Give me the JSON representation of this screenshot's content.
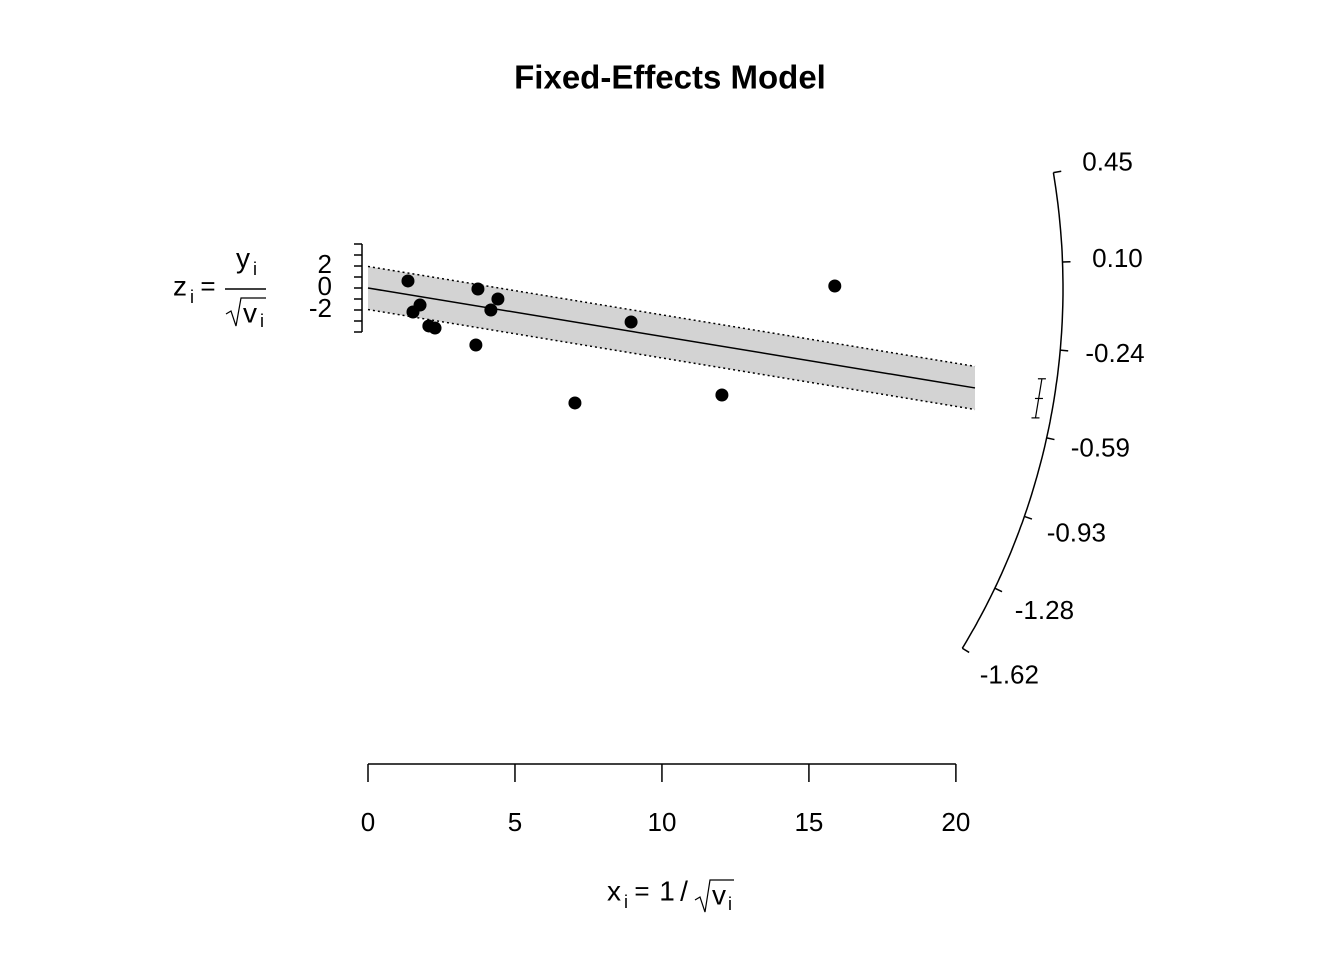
{
  "chart_data": {
    "type": "radial",
    "title": "Fixed-Effects Model",
    "xlabel_parts": [
      "x",
      "i",
      "=",
      "1",
      "/",
      "v",
      "i"
    ],
    "ylabel_parts": [
      "z",
      "i",
      "=",
      "y",
      "i",
      "v",
      "i"
    ],
    "x": [
      1.36,
      1.53,
      1.77,
      2.07,
      2.28,
      3.67,
      3.74,
      4.18,
      4.42,
      7.04,
      8.95,
      12.04,
      15.88
    ],
    "values": [
      0.64,
      -2.18,
      -1.55,
      -3.45,
      -3.64,
      -5.18,
      -0.09,
      -2.0,
      -1.0,
      -10.45,
      -3.09,
      -9.73,
      0.18
    ],
    "color": "#000000",
    "xlim": [
      0,
      20.65
    ],
    "xticks": [
      0,
      5,
      10,
      15,
      20
    ],
    "ylim": [
      -4,
      4
    ],
    "yticks": [
      -2,
      0,
      2
    ],
    "y_minor_ticks": [
      -4,
      -3,
      -2,
      -1,
      0,
      1,
      2,
      3,
      4
    ],
    "estimate": -0.44,
    "ci": [
      -0.52,
      -0.36
    ],
    "band_z": 1.96,
    "band_color": "#d3d3d3",
    "arc_ticks": [
      0.45,
      {
        "value": 0.1,
        "label": "0.10"
      },
      -0.24,
      -0.59,
      -0.93,
      -1.28,
      -1.62
    ]
  }
}
